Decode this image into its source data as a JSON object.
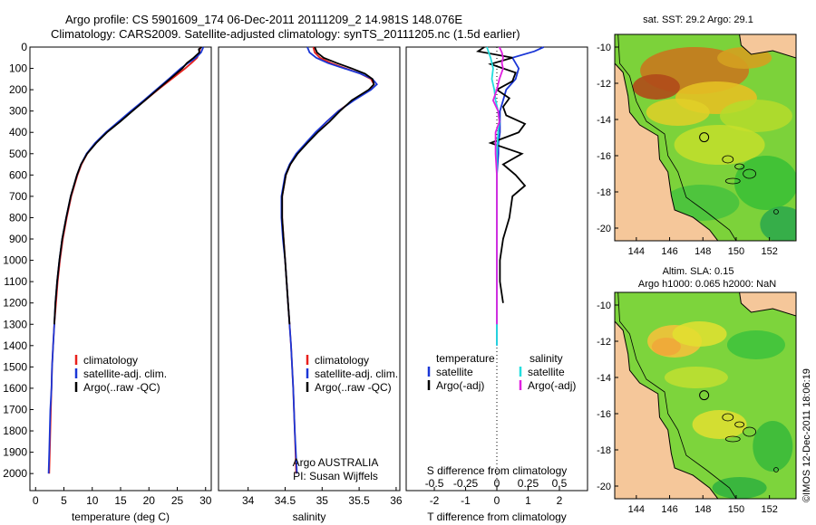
{
  "header": {
    "line1": "Argo profile: CS 5901609_174 06-Dec-2011 20111209_2 14.981S 148.076E",
    "line2": "Climatology: CARS2009. Satellite-adjusted climatology: synTS_20111205.nc (1.5d earlier)"
  },
  "colors": {
    "climatology": "#e8201c",
    "satellite": "#1a36d6",
    "argo": "#000000",
    "satellite_salinity": "#22dede",
    "argo_salinity": "#e020e0",
    "land": "#f5c79a"
  },
  "depth_ticks": [
    "0",
    "100",
    "200",
    "300",
    "400",
    "500",
    "600",
    "700",
    "800",
    "900",
    "1000",
    "1100",
    "1200",
    "1300",
    "1400",
    "1500",
    "1600",
    "1700",
    "1800",
    "1900",
    "2000"
  ],
  "chart_data": [
    {
      "type": "line",
      "id": "temperature",
      "xlabel": "temperature (deg C)",
      "xlim": [
        -1,
        31
      ],
      "ylim": [
        0,
        2080
      ],
      "x_ticks": [
        "0",
        "5",
        "10",
        "15",
        "20",
        "25",
        "30"
      ],
      "x_tick_values": [
        0,
        5,
        10,
        15,
        20,
        25,
        30
      ],
      "legend": [
        {
          "label": "climatology",
          "color": "#e8201c"
        },
        {
          "label": "satellite-adj. clim.",
          "color": "#1a36d6"
        },
        {
          "label": "Argo(..raw -QC)",
          "color": "#000000"
        }
      ],
      "series": [
        {
          "name": "climatology",
          "color": "#e8201c",
          "depth": [
            0,
            25,
            50,
            75,
            100,
            150,
            200,
            250,
            300,
            350,
            400,
            450,
            500,
            550,
            600,
            700,
            800,
            900,
            1000,
            1100,
            1200,
            1300,
            1400,
            1500,
            1600,
            1700,
            1800,
            1900,
            2000
          ],
          "values": [
            29.1,
            28.9,
            28.5,
            27.5,
            26.4,
            24.0,
            21.6,
            19.3,
            17.0,
            14.7,
            12.5,
            10.6,
            9.1,
            8.1,
            7.4,
            6.3,
            5.5,
            4.8,
            4.3,
            3.9,
            3.6,
            3.3,
            3.1,
            2.9,
            2.8,
            2.7,
            2.6,
            2.5,
            2.4
          ]
        },
        {
          "name": "satellite-adj. clim.",
          "color": "#1a36d6",
          "depth": [
            0,
            25,
            50,
            75,
            100,
            150,
            200,
            250,
            300,
            350,
            400,
            450,
            500,
            550,
            600,
            700,
            800,
            900,
            1000,
            1100,
            1200,
            1300,
            1400,
            1500,
            1600,
            1700,
            1800,
            1900,
            2000
          ],
          "values": [
            29.6,
            29.2,
            28.3,
            26.9,
            25.6,
            23.5,
            21.3,
            19.1,
            16.8,
            14.6,
            12.4,
            10.5,
            9.0,
            8.0,
            7.3,
            6.2,
            5.4,
            4.7,
            4.2,
            3.8,
            3.5,
            3.3,
            3.1,
            2.9,
            2.8,
            2.6,
            2.5,
            2.4,
            2.3
          ]
        },
        {
          "name": "Argo(..raw -QC)",
          "color": "#000000",
          "depth": [
            0,
            10,
            25,
            50,
            75,
            100,
            150,
            200,
            250,
            300,
            350,
            400,
            450,
            500,
            550,
            600,
            700,
            800,
            900,
            1000,
            1100,
            1200,
            1300
          ],
          "values": [
            29.3,
            28.8,
            28.9,
            27.9,
            26.7,
            25.9,
            23.7,
            21.5,
            19.3,
            17.1,
            14.9,
            12.6,
            10.7,
            9.1,
            8.0,
            7.3,
            6.2,
            5.4,
            4.7,
            4.2,
            3.8,
            3.5,
            3.3
          ]
        }
      ]
    },
    {
      "type": "line",
      "id": "salinity",
      "xlabel": "salinity",
      "xlim": [
        33.6,
        36.05
      ],
      "ylim": [
        0,
        2080
      ],
      "x_ticks": [
        "34",
        "34.5",
        "35",
        "35.5",
        "36"
      ],
      "x_tick_values": [
        34,
        34.5,
        35,
        35.5,
        36
      ],
      "legend": [
        {
          "label": "climatology",
          "color": "#e8201c"
        },
        {
          "label": "satellite-adj. clim.",
          "color": "#1a36d6"
        },
        {
          "label": "Argo(..raw -QC)",
          "color": "#000000"
        }
      ],
      "annotation_1": "Argo AUSTRALIA",
      "annotation_2": "PI: Susan Wijffels",
      "series": [
        {
          "name": "climatology",
          "color": "#e8201c",
          "depth": [
            0,
            25,
            50,
            75,
            100,
            125,
            150,
            175,
            200,
            250,
            300,
            350,
            400,
            450,
            500,
            550,
            600,
            700,
            800,
            900,
            1000,
            1200,
            1400,
            1600,
            1800,
            2000
          ],
          "values": [
            34.88,
            34.9,
            34.97,
            35.12,
            35.32,
            35.52,
            35.66,
            35.7,
            35.64,
            35.42,
            35.22,
            35.06,
            34.92,
            34.79,
            34.66,
            34.57,
            34.51,
            34.46,
            34.46,
            34.48,
            34.5,
            34.54,
            34.58,
            34.61,
            34.63,
            34.65
          ]
        },
        {
          "name": "satellite-adj. clim.",
          "color": "#1a36d6",
          "depth": [
            0,
            25,
            50,
            75,
            100,
            125,
            150,
            175,
            200,
            250,
            300,
            350,
            400,
            450,
            500,
            550,
            600,
            700,
            800,
            900,
            1000,
            1200,
            1400,
            1600,
            1800,
            2000
          ],
          "values": [
            34.8,
            34.83,
            34.92,
            35.08,
            35.3,
            35.52,
            35.68,
            35.74,
            35.66,
            35.43,
            35.22,
            35.06,
            34.91,
            34.78,
            34.65,
            34.56,
            34.5,
            34.45,
            34.45,
            34.47,
            34.5,
            34.54,
            34.58,
            34.61,
            34.63,
            34.66
          ]
        },
        {
          "name": "Argo(..raw -QC)",
          "color": "#000000",
          "depth": [
            0,
            25,
            50,
            75,
            100,
            125,
            150,
            175,
            200,
            250,
            300,
            350,
            400,
            450,
            500,
            550,
            600,
            700,
            800,
            900,
            1000,
            1100,
            1200,
            1300
          ],
          "values": [
            34.9,
            34.93,
            35.02,
            35.2,
            35.4,
            35.58,
            35.68,
            35.7,
            35.63,
            35.4,
            35.24,
            35.1,
            34.94,
            34.8,
            34.67,
            34.57,
            34.51,
            34.46,
            34.46,
            34.48,
            34.5,
            34.52,
            34.54,
            34.56
          ]
        }
      ]
    },
    {
      "type": "line",
      "id": "difference",
      "xlabel": "T difference from climatology",
      "xlabel_top": "S difference from climatology",
      "xlim": [
        -2.9,
        2.9
      ],
      "ylim": [
        0,
        2080
      ],
      "x_ticks": [
        "-2",
        "-1",
        "0",
        "1",
        "2"
      ],
      "x_tick_values": [
        -2,
        -1,
        0,
        1,
        2
      ],
      "s_ticks": [
        "-0.5",
        "-0.25",
        "0",
        "0.25",
        "0.5"
      ],
      "s_tick_values": [
        -0.5,
        -0.25,
        0,
        0.25,
        0.5
      ],
      "legend_temperature_title": "temperature",
      "legend_salinity_title": "salinity",
      "legend_temperature": [
        {
          "label": "satellite",
          "color": "#1a36d6"
        },
        {
          "label": "Argo(-adj)",
          "color": "#000000"
        }
      ],
      "legend_salinity": [
        {
          "label": "satellite",
          "color": "#22dede"
        },
        {
          "label": "Argo(-adj)",
          "color": "#e020e0"
        }
      ],
      "series": [
        {
          "name": "temperature satellite",
          "color": "#1a36d6",
          "units": "T",
          "depth": [
            0,
            20,
            50,
            100,
            150,
            200,
            250,
            300,
            350,
            400,
            450,
            500,
            600,
            700,
            800,
            900,
            1000,
            1200,
            1400
          ],
          "values": [
            1.5,
            1.2,
            0.5,
            0.7,
            0.6,
            0.3,
            0.2,
            0.1,
            0.1,
            0.1,
            0.05,
            0.05,
            0.0,
            0.0,
            0.0,
            0.0,
            0.0,
            0.0,
            0.0
          ]
        },
        {
          "name": "temperature Argo(-adj)",
          "color": "#000000",
          "units": "T",
          "depth": [
            0,
            20,
            50,
            80,
            120,
            160,
            200,
            240,
            280,
            320,
            360,
            400,
            450,
            500,
            550,
            600,
            650,
            700,
            800,
            900,
            1000,
            1100,
            1200
          ],
          "values": [
            -0.4,
            -0.6,
            0.5,
            -0.2,
            0.6,
            0.5,
            0.0,
            0.4,
            0.2,
            0.3,
            0.9,
            0.7,
            -0.2,
            0.8,
            0.2,
            0.6,
            0.9,
            0.5,
            0.4,
            0.2,
            0.1,
            0.1,
            0.2
          ]
        },
        {
          "name": "salinity satellite",
          "color": "#22dede",
          "units": "S",
          "depth": [
            0,
            50,
            100,
            150,
            200,
            250,
            300,
            350,
            400,
            500,
            600,
            800,
            1000,
            1200,
            1400
          ],
          "values": [
            -0.08,
            -0.05,
            -0.03,
            -0.04,
            -0.02,
            -0.01,
            0.01,
            0.02,
            0.01,
            0.0,
            0.0,
            0.0,
            0.0,
            0.0,
            0.0
          ]
        },
        {
          "name": "salinity Argo(-adj)",
          "color": "#e020e0",
          "units": "S",
          "depth": [
            0,
            25,
            50,
            75,
            100,
            150,
            200,
            250,
            300,
            350,
            400,
            500,
            600,
            700,
            800,
            900,
            1000,
            1100,
            1200,
            1300
          ],
          "values": [
            0.02,
            0.04,
            0.05,
            0.04,
            0.05,
            0.02,
            0.0,
            -0.03,
            0.01,
            0.02,
            -0.01,
            -0.01,
            0.0,
            0.0,
            0.0,
            0.0,
            0.0,
            0.0,
            0.0,
            0.0
          ]
        }
      ]
    }
  ],
  "maps": [
    {
      "id": "sst-map",
      "title": "sat. SST: 29.2 Argo: 29.1",
      "lat_ticks": [
        "-10",
        "-12",
        "-14",
        "-16",
        "-18",
        "-20"
      ],
      "lon_ticks": [
        "144",
        "146",
        "148",
        "150",
        "152"
      ],
      "profile_lon": 148.076,
      "profile_lat": -14.981
    },
    {
      "id": "sla-map",
      "title_1": "Altim. SLA: 0.15",
      "title_2": "Argo h1000: 0.065 h2000: NaN",
      "lat_ticks": [
        "-10",
        "-12",
        "-14",
        "-16",
        "-18",
        "-20"
      ],
      "lon_ticks": [
        "144",
        "146",
        "148",
        "150",
        "152"
      ],
      "profile_lon": 148.076,
      "profile_lat": -14.981
    }
  ],
  "credit": "©IMOS 12-Dec-2011 18:06:19"
}
